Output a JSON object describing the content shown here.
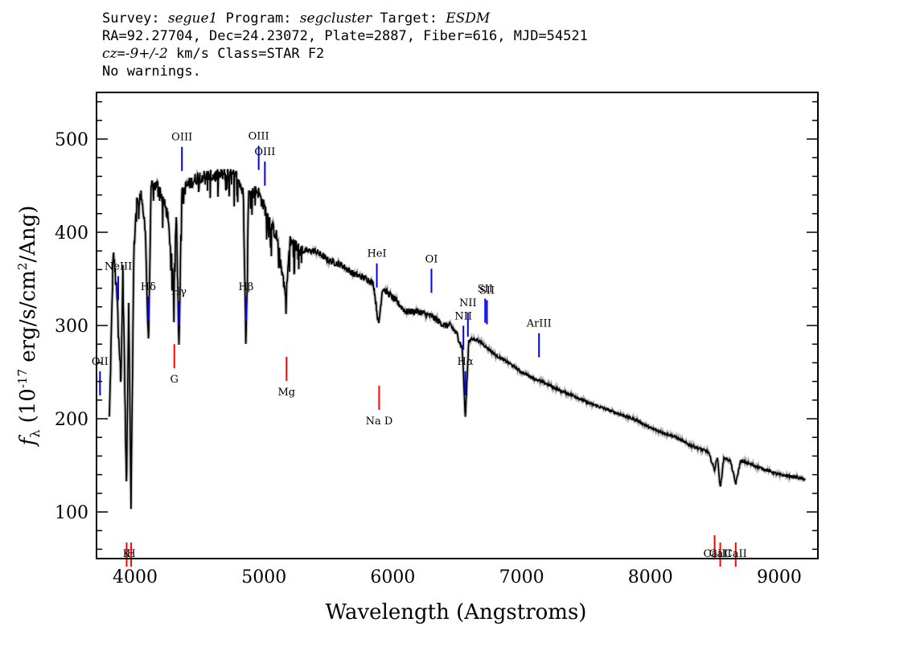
{
  "header": {
    "line1": {
      "a": "Survey: ",
      "survey": "segue1",
      "b": " Program: ",
      "program": "segcluster",
      "c": " Target: ",
      "target": "ESDM"
    },
    "line2": "RA=92.27704, Dec=24.23072, Plate=2887, Fiber=616, MJD=54521",
    "line3": {
      "cz": "cz",
      "eq": "=",
      "vel": "-9+/-2",
      "rest": " km/s Class=STAR F2"
    },
    "line4": "No warnings."
  },
  "chart_data": {
    "type": "line",
    "xlabel": "Wavelength (Angstroms)",
    "ylabel": "f_λ (10^-17 erg/s/cm^2/Ang)",
    "xlim": [
      3700,
      9300
    ],
    "ylim": [
      50,
      550
    ],
    "x_ticks": [
      4000,
      5000,
      6000,
      7000,
      8000,
      9000
    ],
    "y_ticks": [
      100,
      200,
      300,
      400,
      500
    ],
    "series": [
      {
        "x": [
          3800,
          3830,
          3860,
          3889,
          3905,
          3933,
          3950,
          3968,
          3990,
          4010,
          4050,
          4080,
          4102,
          4125,
          4180,
          4250,
          4290,
          4300,
          4320,
          4340,
          4360,
          4400,
          4500,
          4600,
          4700,
          4800,
          4840,
          4861,
          4880,
          4950,
          5050,
          5100,
          5172,
          5200,
          5300,
          5400,
          5500,
          5600,
          5700,
          5800,
          5850,
          5890,
          5920,
          6000,
          6100,
          6200,
          6300,
          6400,
          6450,
          6500,
          6540,
          6563,
          6590,
          6650,
          6700,
          6800,
          6900,
          7000,
          7100,
          7200,
          7300,
          7400,
          7500,
          7600,
          7700,
          7800,
          7900,
          8000,
          8100,
          8200,
          8300,
          8400,
          8450,
          8498,
          8520,
          8542,
          8570,
          8620,
          8662,
          8700,
          8800,
          8900,
          9000,
          9100,
          9200
        ],
        "y": [
          200,
          380,
          330,
          240,
          360,
          120,
          330,
          110,
          380,
          430,
          440,
          400,
          280,
          450,
          450,
          420,
          360,
          330,
          430,
          275,
          440,
          450,
          460,
          460,
          462,
          460,
          440,
          280,
          440,
          445,
          410,
          395,
          330,
          390,
          380,
          380,
          370,
          365,
          355,
          350,
          345,
          300,
          340,
          330,
          315,
          315,
          310,
          300,
          300,
          290,
          275,
          200,
          285,
          285,
          280,
          268,
          260,
          250,
          243,
          237,
          230,
          225,
          218,
          213,
          208,
          203,
          198,
          190,
          185,
          180,
          172,
          167,
          164,
          145,
          160,
          125,
          158,
          155,
          130,
          155,
          150,
          145,
          140,
          138,
          135
        ]
      }
    ],
    "emission_lines": [
      {
        "label": "OII",
        "x": 3727
      },
      {
        "label": "NeIII",
        "x": 3869
      },
      {
        "label": "Hδ",
        "x": 4102
      },
      {
        "label": "Hγ",
        "x": 4340
      },
      {
        "label": "OIII",
        "x": 4363
      },
      {
        "label": "Hβ",
        "x": 4861
      },
      {
        "label": "OIII",
        "x": 4959
      },
      {
        "label": "OIII",
        "x": 5007
      },
      {
        "label": "HeI",
        "x": 5876
      },
      {
        "label": "OI",
        "x": 6300
      },
      {
        "label": "NII",
        "x": 6548
      },
      {
        "label": "Hα",
        "x": 6563
      },
      {
        "label": "NII",
        "x": 6583
      },
      {
        "label": "SII",
        "x": 6717
      },
      {
        "label": "SII",
        "x": 6731
      },
      {
        "label": "ArIII",
        "x": 7135
      }
    ],
    "absorption_lines": [
      {
        "label": "K",
        "x": 3934
      },
      {
        "label": "H",
        "x": 3969
      },
      {
        "label": "G",
        "x": 4304
      },
      {
        "label": "Mg",
        "x": 5175
      },
      {
        "label": "Na D",
        "x": 5894
      },
      {
        "label": "CaII",
        "x": 8498
      },
      {
        "label": "CaII",
        "x": 8542
      },
      {
        "label": "CaII",
        "x": 8662
      }
    ],
    "colors": {
      "spectrum": "#000000",
      "emission": "#0000ff",
      "absorption": "#ff0000",
      "frame": "#000000"
    }
  }
}
